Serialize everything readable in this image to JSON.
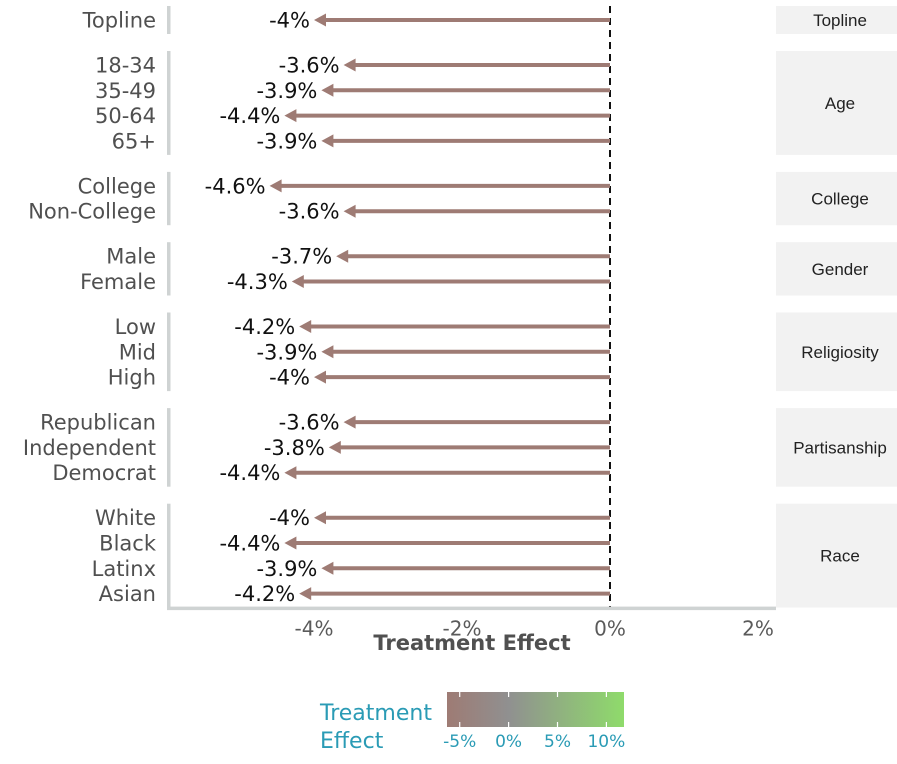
{
  "chart_data": {
    "type": "bar",
    "orientation": "horizontal",
    "mark": "arrow",
    "xlabel": "Treatment Effect",
    "xlim": [
      -6.3,
      2.4
    ],
    "xticks": [
      -4,
      -2,
      0,
      2
    ],
    "xtick_labels": [
      "-4%",
      "-2%",
      "0%",
      "2%"
    ],
    "reference_line": 0,
    "colors": {
      "arrow": "#9e7b74",
      "strip": "#f2f2f2",
      "axis": "#cfd3d3"
    },
    "groups": [
      {
        "facet": "Topline",
        "rows": [
          {
            "label": "Topline",
            "value": -4.0,
            "value_label": "-4%"
          }
        ]
      },
      {
        "facet": "Age",
        "rows": [
          {
            "label": "18-34",
            "value": -3.6,
            "value_label": "-3.6%"
          },
          {
            "label": "35-49",
            "value": -3.9,
            "value_label": "-3.9%"
          },
          {
            "label": "50-64",
            "value": -4.4,
            "value_label": "-4.4%"
          },
          {
            "label": "65+",
            "value": -3.9,
            "value_label": "-3.9%"
          }
        ]
      },
      {
        "facet": "College",
        "rows": [
          {
            "label": "College",
            "value": -4.6,
            "value_label": "-4.6%"
          },
          {
            "label": "Non-College",
            "value": -3.6,
            "value_label": "-3.6%"
          }
        ]
      },
      {
        "facet": "Gender",
        "rows": [
          {
            "label": "Male",
            "value": -3.7,
            "value_label": "-3.7%"
          },
          {
            "label": "Female",
            "value": -4.3,
            "value_label": "-4.3%"
          }
        ]
      },
      {
        "facet": "Religiosity",
        "rows": [
          {
            "label": "Low",
            "value": -4.2,
            "value_label": "-4.2%"
          },
          {
            "label": "Mid",
            "value": -3.9,
            "value_label": "-3.9%"
          },
          {
            "label": "High",
            "value": -4.0,
            "value_label": "-4%"
          }
        ]
      },
      {
        "facet": "Partisanship",
        "rows": [
          {
            "label": "Republican",
            "value": -3.6,
            "value_label": "-3.6%"
          },
          {
            "label": "Independent",
            "value": -3.8,
            "value_label": "-3.8%"
          },
          {
            "label": "Democrat",
            "value": -4.4,
            "value_label": "-4.4%"
          }
        ]
      },
      {
        "facet": "Race",
        "rows": [
          {
            "label": "White",
            "value": -4.0,
            "value_label": "-4%"
          },
          {
            "label": "Black",
            "value": -4.4,
            "value_label": "-4.4%"
          },
          {
            "label": "Latinx",
            "value": -3.9,
            "value_label": "-3.9%"
          },
          {
            "label": "Asian",
            "value": -4.2,
            "value_label": "-4.2%"
          }
        ]
      }
    ],
    "legend": {
      "title_lines": [
        "Treatment",
        "Effect"
      ],
      "tick_values": [
        -5,
        0,
        5,
        10
      ],
      "tick_labels": [
        "-5%",
        "0%",
        "5%",
        "10%"
      ],
      "range": [
        -6.3,
        11.8
      ],
      "color_low": "#9e7b74",
      "color_mid": "#909090",
      "color_high": "#8fdb6b"
    }
  }
}
